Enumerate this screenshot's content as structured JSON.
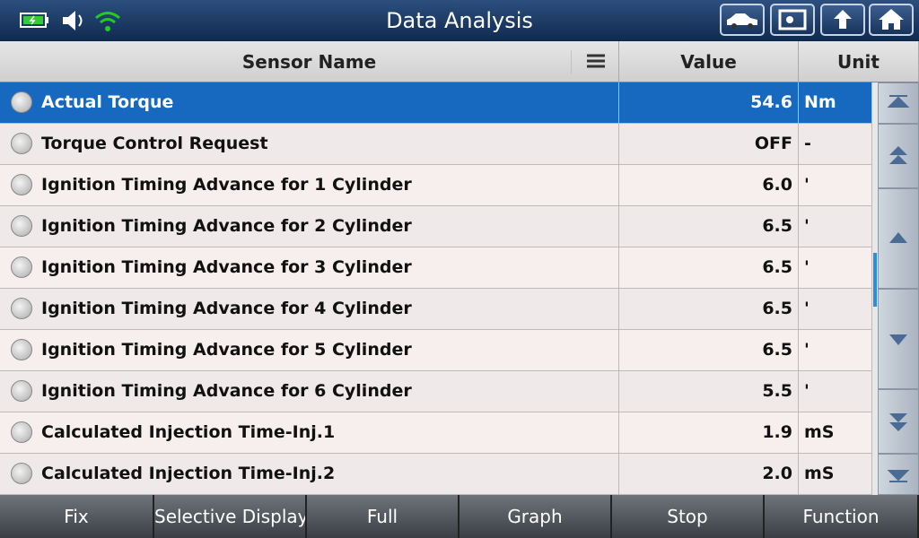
{
  "header": {
    "title": "Data Analysis"
  },
  "table": {
    "columns": [
      "Sensor Name",
      "Value",
      "Unit"
    ],
    "rows": [
      [
        "Actual Torque",
        "54.6",
        "Nm"
      ],
      [
        "Torque Control Request",
        "OFF",
        "-"
      ],
      [
        "Ignition Timing Advance for 1 Cylinder",
        "6.0",
        "'"
      ],
      [
        "Ignition Timing Advance for 2 Cylinder",
        "6.5",
        "'"
      ],
      [
        "Ignition Timing Advance for 3 Cylinder",
        "6.5",
        "'"
      ],
      [
        "Ignition Timing Advance for 4 Cylinder",
        "6.5",
        "'"
      ],
      [
        "Ignition Timing Advance for 5 Cylinder",
        "6.5",
        "'"
      ],
      [
        "Ignition Timing Advance for 6 Cylinder",
        "5.5",
        "'"
      ],
      [
        "Calculated Injection Time-Inj.1",
        "1.9",
        "mS"
      ],
      [
        "Calculated Injection Time-Inj.2",
        "2.0",
        "mS"
      ]
    ]
  },
  "footer": {
    "buttons": [
      "Fix",
      "Selective Display",
      "Full",
      "Graph",
      "Stop",
      "Function"
    ]
  }
}
